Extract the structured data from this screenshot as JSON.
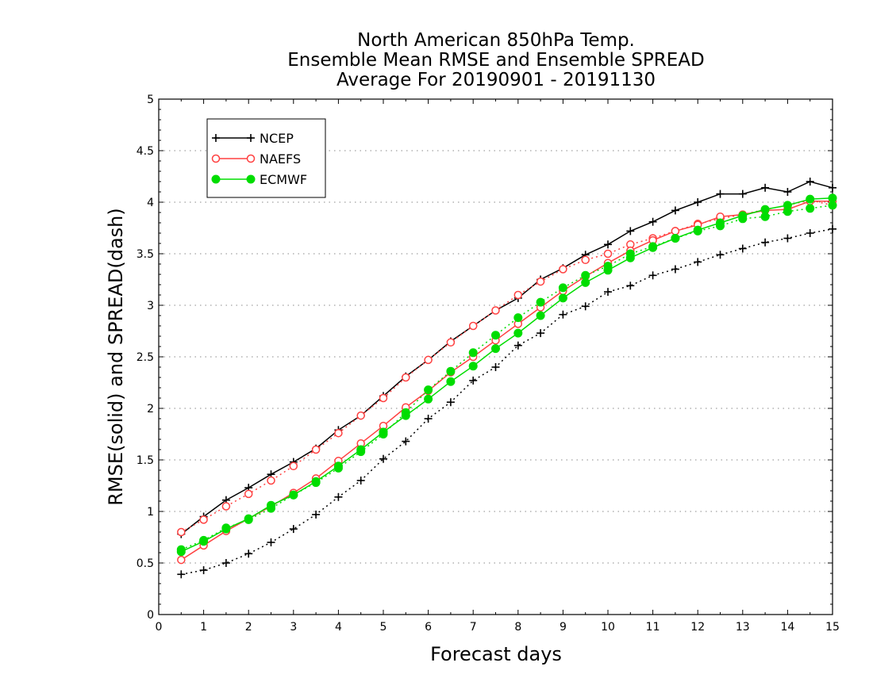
{
  "chart_data": {
    "type": "line",
    "title": [
      "North American 850hPa Temp.",
      "Ensemble Mean RMSE and Ensemble SPREAD",
      "Average For 20190901 - 20191130"
    ],
    "xlabel": "Forecast days",
    "ylabel": "RMSE(solid) and SPREAD(dash)",
    "xlim": [
      0,
      15
    ],
    "ylim": [
      0,
      5
    ],
    "xticks": [
      0,
      1,
      2,
      3,
      4,
      5,
      6,
      7,
      8,
      9,
      10,
      11,
      12,
      13,
      14,
      15
    ],
    "yticks": [
      0,
      0.5,
      1,
      1.5,
      2,
      2.5,
      3,
      3.5,
      4,
      4.5,
      5
    ],
    "ytick_labels": [
      "0",
      "0.5",
      "1",
      "1.5",
      "2",
      "2.5",
      "3",
      "3.5",
      "4",
      "4.5",
      "5"
    ],
    "grid": "horizontal dotted",
    "legend_position": "top-left",
    "x": [
      0.5,
      1,
      1.5,
      2,
      2.5,
      3,
      3.5,
      4,
      4.5,
      5,
      5.5,
      6,
      6.5,
      7,
      7.5,
      8,
      8.5,
      9,
      9.5,
      10,
      10.5,
      11,
      11.5,
      12,
      12.5,
      13,
      13.5,
      14,
      14.5,
      15
    ],
    "series": [
      {
        "name": "NCEP",
        "color": "#000000",
        "marker": "plus",
        "rmse": [
          0.78,
          0.95,
          1.11,
          1.23,
          1.36,
          1.48,
          1.61,
          1.79,
          1.93,
          2.12,
          2.31,
          2.47,
          2.65,
          2.8,
          2.95,
          3.07,
          3.25,
          3.36,
          3.49,
          3.59,
          3.72,
          3.81,
          3.92,
          4.0,
          4.08,
          4.08,
          4.14,
          4.1,
          4.2,
          4.14
        ],
        "spread": [
          0.39,
          0.43,
          0.5,
          0.59,
          0.7,
          0.83,
          0.97,
          1.14,
          1.3,
          1.51,
          1.68,
          1.9,
          2.06,
          2.27,
          2.4,
          2.61,
          2.73,
          2.91,
          2.99,
          3.13,
          3.19,
          3.29,
          3.35,
          3.42,
          3.49,
          3.55,
          3.61,
          3.65,
          3.7,
          3.74
        ]
      },
      {
        "name": "NAEFS",
        "color": "#ff4040",
        "marker": "open-circle",
        "rmse": [
          0.53,
          0.67,
          0.81,
          0.93,
          1.05,
          1.18,
          1.32,
          1.49,
          1.66,
          1.83,
          2.01,
          2.17,
          2.35,
          2.5,
          2.66,
          2.82,
          2.98,
          3.14,
          3.28,
          3.41,
          3.53,
          3.63,
          3.72,
          3.78,
          3.86,
          3.88,
          3.92,
          3.93,
          4.01,
          4.01
        ],
        "spread": [
          0.8,
          0.92,
          1.05,
          1.17,
          1.3,
          1.44,
          1.6,
          1.76,
          1.93,
          2.1,
          2.3,
          2.47,
          2.64,
          2.8,
          2.95,
          3.1,
          3.23,
          3.35,
          3.44,
          3.5,
          3.59,
          3.65,
          3.72,
          3.79,
          3.84,
          3.88,
          3.93,
          3.97,
          4.02,
          3.97
        ]
      },
      {
        "name": "ECMWF",
        "color": "#00dd00",
        "marker": "filled-circle",
        "rmse": [
          0.61,
          0.71,
          0.83,
          0.93,
          1.06,
          1.16,
          1.29,
          1.44,
          1.6,
          1.77,
          1.93,
          2.09,
          2.26,
          2.41,
          2.58,
          2.73,
          2.9,
          3.07,
          3.22,
          3.34,
          3.46,
          3.56,
          3.65,
          3.73,
          3.8,
          3.87,
          3.93,
          3.97,
          4.03,
          4.04
        ],
        "spread": [
          0.63,
          0.72,
          0.84,
          0.92,
          1.03,
          1.16,
          1.28,
          1.42,
          1.58,
          1.75,
          1.96,
          2.18,
          2.36,
          2.54,
          2.71,
          2.88,
          3.03,
          3.17,
          3.29,
          3.38,
          3.5,
          3.57,
          3.65,
          3.72,
          3.77,
          3.84,
          3.86,
          3.91,
          3.94,
          3.97
        ]
      }
    ]
  }
}
